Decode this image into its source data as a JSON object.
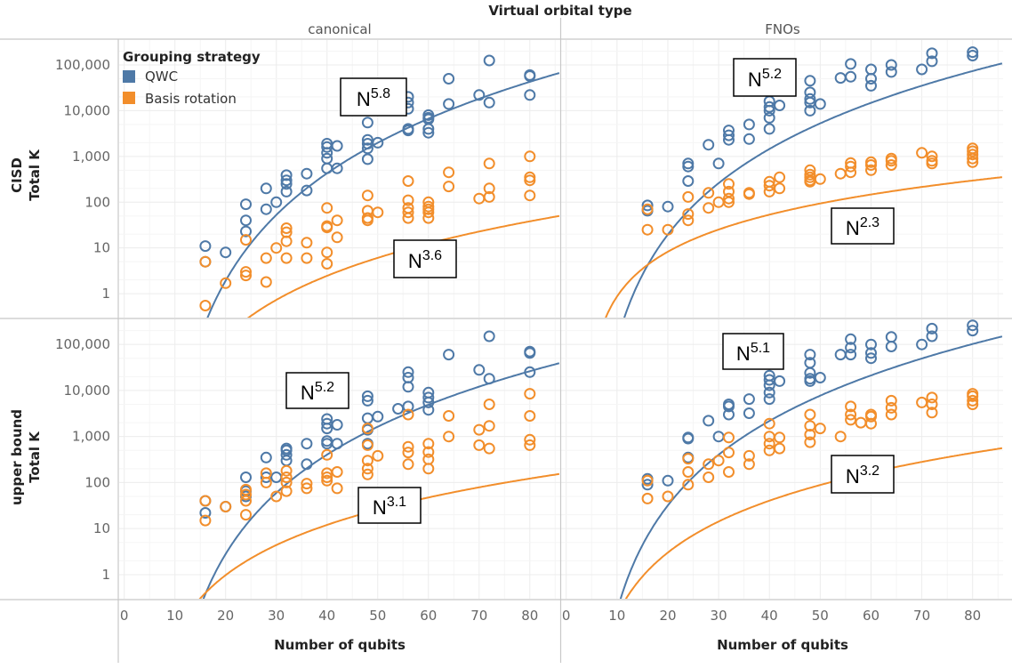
{
  "chart_data": {
    "type": "scatter",
    "title": "Virtual orbital type",
    "columns": [
      "canonical",
      "FNOs"
    ],
    "rows": [
      {
        "label_top": "CISD",
        "label_bottom": "Total K"
      },
      {
        "label_top": "upper bound",
        "label_bottom": "Total K"
      }
    ],
    "xlabel": "Number of qubits",
    "x_ticks": [
      "0",
      "10",
      "20",
      "30",
      "40",
      "50",
      "60",
      "70",
      "80"
    ],
    "y_ticks": [
      "1",
      "10",
      "100",
      "1,000",
      "10,000",
      "100,000"
    ],
    "y_scale": "log",
    "xlim": [
      -1,
      86
    ],
    "ylim": [
      0.3,
      350000
    ],
    "grid": true,
    "legend": {
      "title": "Grouping strategy",
      "placement": "top-left",
      "entries": [
        {
          "name": "QWC",
          "color": "#4e79a7"
        },
        {
          "name": "Basis rotation",
          "color": "#f28e2b"
        }
      ]
    },
    "panels": [
      {
        "row": 0,
        "col": 0,
        "annotations": [
          {
            "series": "QWC",
            "base": "N",
            "exp": "5.8"
          },
          {
            "series": "Basis rotation",
            "base": "N",
            "exp": "3.6"
          }
        ],
        "series": [
          {
            "name": "QWC",
            "fit": {
              "a": 0.42,
              "b": 7.0,
              "p": 5.8
            },
            "x": [
              16,
              16,
              20,
              24,
              24,
              24,
              28,
              28,
              30,
              32,
              32,
              32,
              32,
              36,
              36,
              40,
              40,
              40,
              40,
              40,
              42,
              42,
              48,
              48,
              48,
              48,
              48,
              50,
              56,
              56,
              56,
              56,
              56,
              60,
              60,
              60,
              60,
              60,
              64,
              64,
              70,
              72,
              72,
              80,
              80,
              80
            ],
            "y": [
              11,
              5,
              8,
              90,
              40,
              23,
              200,
              70,
              100,
              390,
              300,
              250,
              170,
              420,
              180,
              1900,
              1600,
              1200,
              900,
              550,
              550,
              1700,
              5500,
              2300,
              1900,
              1500,
              870,
              2000,
              20000,
              15000,
              11000,
              4000,
              3700,
              8000,
              7000,
              6500,
              4000,
              3300,
              50000,
              14000,
              22000,
              125000,
              15000,
              60000,
              57000,
              22000
            ]
          },
          {
            "name": "Basis rotation",
            "fit": {
              "a": 0.027,
              "b": 5.0,
              "p": 3.6
            },
            "x": [
              16,
              16,
              20,
              24,
              24,
              24,
              28,
              28,
              30,
              32,
              32,
              32,
              32,
              36,
              36,
              40,
              40,
              40,
              40,
              40,
              42,
              42,
              48,
              48,
              48,
              48,
              48,
              50,
              56,
              56,
              56,
              56,
              56,
              60,
              60,
              60,
              60,
              60,
              64,
              64,
              70,
              72,
              72,
              72,
              80,
              80,
              80,
              80
            ],
            "y": [
              0.55,
              5,
              1.7,
              15,
              3,
              2.5,
              6,
              1.8,
              10,
              27,
              22,
              14,
              6,
              13,
              6,
              75,
              30,
              28,
              8,
              4.5,
              17,
              40,
              140,
              65,
              45,
              40,
              45,
              60,
              290,
              110,
              75,
              60,
              45,
              100,
              80,
              70,
              60,
              45,
              450,
              220,
              120,
              700,
              200,
              130,
              1000,
              350,
              300,
              140
            ]
          }
        ]
      },
      {
        "row": 0,
        "col": 1,
        "annotations": [
          {
            "series": "QWC",
            "base": "N",
            "exp": "5.2"
          },
          {
            "series": "Basis rotation",
            "base": "N",
            "exp": "2.3"
          }
        ],
        "series": [
          {
            "name": "QWC",
            "fit": {
              "a": 2.0,
              "b": 4.5,
              "p": 5.2
            },
            "x": [
              16,
              16,
              20,
              24,
              24,
              24,
              28,
              30,
              32,
              32,
              32,
              36,
              36,
              40,
              40,
              40,
              40,
              40,
              42,
              48,
              48,
              48,
              48,
              48,
              50,
              54,
              56,
              56,
              60,
              60,
              60,
              64,
              64,
              70,
              72,
              72,
              80,
              80
            ],
            "y": [
              85,
              65,
              80,
              700,
              600,
              290,
              1800,
              700,
              3700,
              2900,
              2300,
              5000,
              2400,
              16000,
              12000,
              10000,
              7000,
              4000,
              13000,
              45000,
              25000,
              18000,
              15000,
              10000,
              14000,
              52000,
              105000,
              55000,
              80000,
              50000,
              35000,
              100000,
              70000,
              80000,
              180000,
              120000,
              190000,
              160000
            ]
          },
          {
            "name": "Basis rotation",
            "fit": {
              "a": 2.8,
              "b": 4.0,
              "p": 2.3
            },
            "x": [
              16,
              16,
              20,
              24,
              24,
              24,
              28,
              28,
              30,
              32,
              32,
              32,
              32,
              36,
              36,
              40,
              40,
              40,
              42,
              42,
              48,
              48,
              48,
              48,
              48,
              50,
              54,
              56,
              56,
              56,
              60,
              60,
              60,
              64,
              64,
              64,
              70,
              72,
              72,
              72,
              80,
              80,
              80,
              80,
              80
            ],
            "y": [
              70,
              25,
              25,
              130,
              55,
              40,
              160,
              75,
              100,
              250,
              170,
              120,
              100,
              160,
              150,
              280,
              230,
              170,
              350,
              200,
              500,
              400,
              350,
              300,
              280,
              320,
              420,
              720,
              600,
              450,
              750,
              650,
              500,
              900,
              800,
              650,
              1200,
              1000,
              800,
              700,
              1500,
              1300,
              1100,
              900,
              750
            ]
          }
        ]
      },
      {
        "row": 1,
        "col": 0,
        "annotations": [
          {
            "series": "QWC",
            "base": "N",
            "exp": "5.2"
          },
          {
            "series": "Basis rotation",
            "base": "N",
            "exp": "3.1"
          }
        ],
        "series": [
          {
            "name": "QWC",
            "fit": {
              "a": 0.88,
              "b": 7.5,
              "p": 5.2
            },
            "x": [
              16,
              16,
              20,
              24,
              24,
              24,
              28,
              28,
              30,
              32,
              32,
              32,
              32,
              36,
              36,
              40,
              40,
              40,
              40,
              40,
              42,
              42,
              48,
              48,
              48,
              48,
              48,
              50,
              54,
              56,
              56,
              56,
              56,
              60,
              60,
              60,
              60,
              64,
              70,
              72,
              72,
              80,
              80,
              80
            ],
            "y": [
              40,
              22,
              30,
              130,
              65,
              50,
              350,
              130,
              130,
              550,
              500,
              400,
              300,
              700,
              250,
              2400,
              1900,
              1500,
              800,
              700,
              1800,
              700,
              7500,
              6000,
              2500,
              1400,
              700,
              2700,
              4000,
              25000,
              19000,
              12000,
              4500,
              9000,
              7000,
              5500,
              3800,
              60000,
              28000,
              150000,
              18000,
              70000,
              65000,
              25000
            ]
          },
          {
            "name": "Basis rotation",
            "fit": {
              "a": 0.227,
              "b": 4.0,
              "p": 3.1
            },
            "x": [
              16,
              16,
              20,
              24,
              24,
              24,
              24,
              28,
              28,
              30,
              32,
              32,
              32,
              32,
              36,
              36,
              40,
              40,
              40,
              40,
              42,
              42,
              48,
              48,
              48,
              48,
              48,
              50,
              56,
              56,
              56,
              56,
              60,
              60,
              60,
              60,
              64,
              64,
              70,
              70,
              72,
              72,
              72,
              80,
              80,
              80,
              80
            ],
            "y": [
              40,
              15,
              30,
              70,
              55,
              40,
              20,
              160,
              100,
              50,
              180,
              130,
              100,
              65,
              95,
              75,
              400,
              160,
              130,
              110,
              170,
              75,
              1500,
              650,
              300,
              200,
              150,
              380,
              3000,
              600,
              450,
              250,
              700,
              460,
              320,
              200,
              2800,
              1000,
              1400,
              650,
              5000,
              1700,
              550,
              8500,
              2800,
              850,
              650
            ]
          }
        ]
      },
      {
        "row": 1,
        "col": 1,
        "annotations": [
          {
            "series": "QWC",
            "base": "N",
            "exp": "5.1"
          },
          {
            "series": "Basis rotation",
            "base": "N",
            "exp": "3.2"
          }
        ],
        "series": [
          {
            "name": "QWC",
            "fit": {
              "a": 3.4,
              "b": 4.5,
              "p": 5.1
            },
            "x": [
              16,
              16,
              20,
              24,
              24,
              24,
              28,
              30,
              32,
              32,
              32,
              36,
              36,
              40,
              40,
              40,
              40,
              40,
              42,
              48,
              48,
              48,
              48,
              48,
              50,
              54,
              56,
              56,
              56,
              60,
              60,
              60,
              64,
              64,
              70,
              72,
              72,
              80,
              80
            ],
            "y": [
              120,
              90,
              110,
              950,
              900,
              350,
              2200,
              1000,
              5000,
              4500,
              3000,
              6500,
              3200,
              21000,
              17000,
              13000,
              9000,
              6500,
              16000,
              60000,
              40000,
              24000,
              18000,
              16000,
              19000,
              60000,
              130000,
              85000,
              60000,
              100000,
              65000,
              50000,
              145000,
              90000,
              100000,
              220000,
              150000,
              260000,
              200000
            ]
          },
          {
            "name": "Basis rotation",
            "fit": {
              "a": 0.67,
              "b": 4.0,
              "p": 3.2
            },
            "x": [
              16,
              16,
              20,
              24,
              24,
              24,
              28,
              28,
              30,
              32,
              32,
              32,
              36,
              36,
              40,
              40,
              40,
              40,
              42,
              42,
              48,
              48,
              48,
              48,
              50,
              54,
              56,
              56,
              56,
              58,
              60,
              60,
              60,
              64,
              64,
              64,
              70,
              72,
              72,
              72,
              80,
              80,
              80,
              80
            ],
            "y": [
              110,
              45,
              50,
              330,
              170,
              90,
              250,
              130,
              300,
              950,
              450,
              170,
              380,
              250,
              1900,
              1000,
              700,
              500,
              950,
              550,
              3000,
              1700,
              1100,
              750,
              1500,
              1000,
              4500,
              3000,
              2300,
              2000,
              3000,
              2700,
              1900,
              6000,
              4200,
              3000,
              5500,
              7000,
              5000,
              3300,
              8500,
              7500,
              6000,
              5000
            ]
          }
        ]
      }
    ]
  }
}
